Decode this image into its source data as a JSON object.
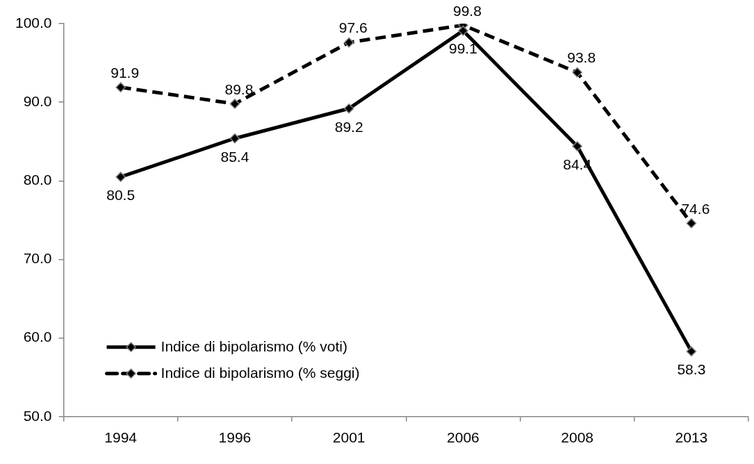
{
  "chart_data": {
    "type": "line",
    "categories": [
      "1994",
      "1996",
      "2001",
      "2006",
      "2008",
      "2013"
    ],
    "series": [
      {
        "name": "Indice di bipolarismo (% voti)",
        "color": "#000000",
        "line_style": "solid",
        "values": [
          80.5,
          85.4,
          89.2,
          99.1,
          84.4,
          58.3
        ]
      },
      {
        "name": "Indice di bipolarismo (% seggi)",
        "color": "#000000",
        "line_style": "dashed",
        "values": [
          91.9,
          89.8,
          97.6,
          99.8,
          93.8,
          74.6
        ]
      }
    ],
    "ylim": [
      50,
      100
    ],
    "yticks": [
      {
        "value": 50,
        "label": "50.0"
      },
      {
        "value": 60,
        "label": "60.0"
      },
      {
        "value": 70,
        "label": "70.0"
      },
      {
        "value": 80,
        "label": "80.0"
      },
      {
        "value": 90,
        "label": "90.0"
      },
      {
        "value": 100,
        "label": "100.0"
      }
    ],
    "grid": false,
    "legend": "bottom left",
    "marker": "diamond",
    "data_labels": true
  }
}
